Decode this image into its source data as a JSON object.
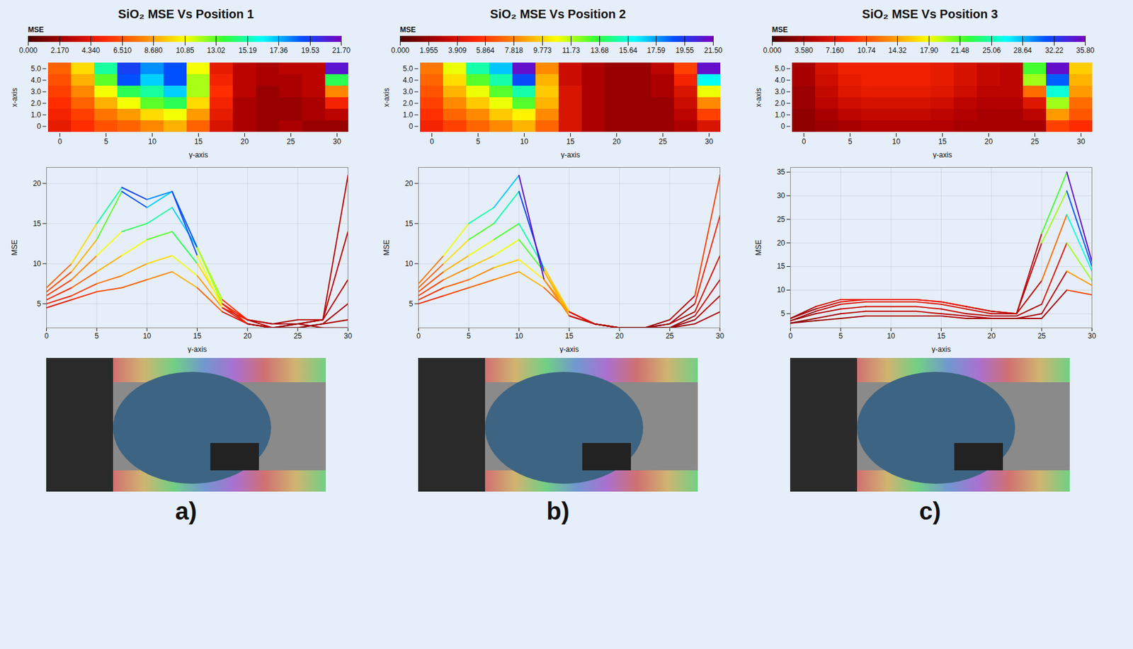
{
  "chart_data": [
    {
      "type": "surface",
      "title": "SiO₂ MSE Vs Position 1",
      "panel_label": "a)",
      "x": [
        0,
        2.5,
        5,
        7.5,
        10,
        12.5,
        15,
        17.5,
        20,
        22.5,
        25,
        27.5,
        30
      ],
      "xlabel": "y-axis",
      "xlim": [
        0,
        30
      ],
      "xticks": [
        0,
        5,
        10,
        15,
        20,
        25,
        30
      ],
      "depth": [
        0,
        1,
        2,
        3,
        4,
        5
      ],
      "depth_label": "x-axis",
      "depth_ticks": [
        {
          "value": 0,
          "label": "0"
        },
        {
          "value": 1,
          "label": "1.0"
        },
        {
          "value": 2,
          "label": "2.0"
        },
        {
          "value": 3,
          "label": "3.0"
        },
        {
          "value": 4,
          "label": "4.0"
        },
        {
          "value": 5,
          "label": "5.0"
        }
      ],
      "ylabel": "MSE",
      "ylim": [
        2,
        22
      ],
      "yticks": [
        5,
        10,
        15,
        20
      ],
      "grid": true,
      "values": [
        [
          4.5,
          5.5,
          6.5,
          7,
          8,
          9,
          7,
          4,
          2.5,
          2,
          2.5,
          2,
          2
        ],
        [
          5,
          6,
          7.5,
          8.5,
          10,
          11,
          8.5,
          4.5,
          2.5,
          2,
          2,
          2.5,
          3
        ],
        [
          5.5,
          7,
          9,
          11,
          13,
          14,
          10,
          5,
          2.5,
          2,
          2,
          2.5,
          5
        ],
        [
          6,
          8,
          11,
          14,
          15,
          17,
          12,
          5.5,
          3,
          2,
          2.5,
          3,
          8
        ],
        [
          6.5,
          9,
          13,
          19,
          17,
          19,
          12,
          5,
          3,
          2.5,
          2.5,
          3,
          14
        ],
        [
          7,
          10,
          15,
          19.5,
          18,
          19,
          11,
          4.5,
          3,
          2.5,
          3,
          3,
          21
        ]
      ],
      "colorbar": {
        "label": "MSE",
        "range": [
          0,
          21.7
        ],
        "ticks": [
          {
            "value": 0,
            "label": "0.000"
          },
          {
            "value": 2.17,
            "label": "2.170"
          },
          {
            "value": 4.34,
            "label": "4.340"
          },
          {
            "value": 6.51,
            "label": "6.510"
          },
          {
            "value": 8.68,
            "label": "8.680"
          },
          10.85,
          13.02,
          15.19,
          17.36,
          19.53,
          {
            "value": 21.7,
            "label": "21.70"
          }
        ]
      }
    },
    {
      "type": "surface",
      "title": "SiO₂ MSE Vs Position 2",
      "panel_label": "b)",
      "x": [
        0,
        2.5,
        5,
        7.5,
        10,
        12.5,
        15,
        17.5,
        20,
        22.5,
        25,
        27.5,
        30
      ],
      "xlabel": "y-axis",
      "xlim": [
        0,
        30
      ],
      "xticks": [
        0,
        5,
        10,
        15,
        20,
        25,
        30
      ],
      "depth": [
        0,
        1,
        2,
        3,
        4,
        5
      ],
      "depth_label": "x-axis",
      "depth_ticks": [
        {
          "value": 0,
          "label": "0"
        },
        {
          "value": 1,
          "label": "1.0"
        },
        {
          "value": 2,
          "label": "2.0"
        },
        {
          "value": 3,
          "label": "3.0"
        },
        {
          "value": 4,
          "label": "4.0"
        },
        {
          "value": 5,
          "label": "5.0"
        }
      ],
      "ylabel": "MSE",
      "ylim": [
        2,
        22
      ],
      "yticks": [
        5,
        10,
        15,
        20
      ],
      "grid": true,
      "values": [
        [
          5,
          6,
          7,
          8,
          9,
          7,
          4,
          2.5,
          2,
          2,
          2,
          2.5,
          4
        ],
        [
          5.5,
          7,
          8,
          9.5,
          10.5,
          8,
          4,
          2.5,
          2,
          2,
          2,
          3,
          6
        ],
        [
          6,
          8,
          9.5,
          11,
          13,
          9,
          4,
          2.5,
          2,
          2,
          2,
          3.5,
          8
        ],
        [
          6.5,
          9,
          11,
          13,
          15,
          9.5,
          4,
          2.5,
          2,
          2,
          2.5,
          4,
          11
        ],
        [
          7,
          10,
          13,
          15,
          19,
          9,
          3.5,
          2.5,
          2,
          2,
          2.5,
          5,
          16
        ],
        [
          7.5,
          11,
          15,
          17,
          21,
          8,
          3.5,
          2.5,
          2,
          2,
          3,
          6,
          21
        ]
      ],
      "colorbar": {
        "label": "MSE",
        "range": [
          0,
          21.5
        ],
        "ticks": [
          {
            "value": 0,
            "label": "0.000"
          },
          1.955,
          3.909,
          5.864,
          7.818,
          9.773,
          11.73,
          13.68,
          15.64,
          17.59,
          19.55,
          {
            "value": 21.5,
            "label": "21.50"
          }
        ]
      }
    },
    {
      "type": "surface",
      "title": "SiO₂ MSE Vs Position 3",
      "panel_label": "c)",
      "x": [
        0,
        2.5,
        5,
        7.5,
        10,
        12.5,
        15,
        17.5,
        20,
        22.5,
        25,
        27.5,
        30
      ],
      "xlabel": "y-axis",
      "xlim": [
        0,
        30
      ],
      "xticks": [
        0,
        5,
        10,
        15,
        20,
        25,
        30
      ],
      "depth": [
        0,
        1,
        2,
        3,
        4,
        5
      ],
      "depth_label": "x-axis",
      "depth_ticks": [
        {
          "value": 0,
          "label": "0"
        },
        {
          "value": 1,
          "label": "1.0"
        },
        {
          "value": 2,
          "label": "2.0"
        },
        {
          "value": 3,
          "label": "3.0"
        },
        {
          "value": 4,
          "label": "4.0"
        },
        {
          "value": 5,
          "label": "5.0"
        }
      ],
      "ylabel": "MSE",
      "ylim": [
        2,
        36
      ],
      "yticks": [
        5,
        10,
        15,
        20,
        25,
        30,
        35
      ],
      "grid": true,
      "values": [
        [
          3,
          3.5,
          4,
          4.5,
          4.5,
          4.5,
          4.5,
          4,
          4,
          4,
          4,
          10,
          9
        ],
        [
          3,
          4,
          5,
          5.5,
          5.5,
          5.5,
          5,
          4.5,
          4,
          4,
          5,
          14,
          11
        ],
        [
          3.5,
          5,
          6,
          6.5,
          6.5,
          6.5,
          6,
          5,
          4.5,
          4.5,
          7,
          20,
          12
        ],
        [
          3.5,
          5.5,
          7,
          7.5,
          7.5,
          7.5,
          7,
          6,
          5,
          5,
          12,
          26,
          14
        ],
        [
          4,
          6,
          7.5,
          8,
          8,
          8,
          7.5,
          6.5,
          5.5,
          5,
          20,
          31,
          15
        ],
        [
          4,
          6.5,
          8,
          8,
          8,
          8,
          7.5,
          6.5,
          5.5,
          5,
          22,
          35,
          16
        ]
      ],
      "colorbar": {
        "label": "MSE",
        "range": [
          0,
          35.8
        ],
        "ticks": [
          {
            "value": 0,
            "label": "0.000"
          },
          {
            "value": 3.58,
            "label": "3.580"
          },
          {
            "value": 7.16,
            "label": "7.160"
          },
          10.74,
          14.32,
          {
            "value": 17.9,
            "label": "17.90"
          },
          21.48,
          25.06,
          28.64,
          32.22,
          {
            "value": 35.8,
            "label": "35.80"
          }
        ]
      }
    }
  ]
}
